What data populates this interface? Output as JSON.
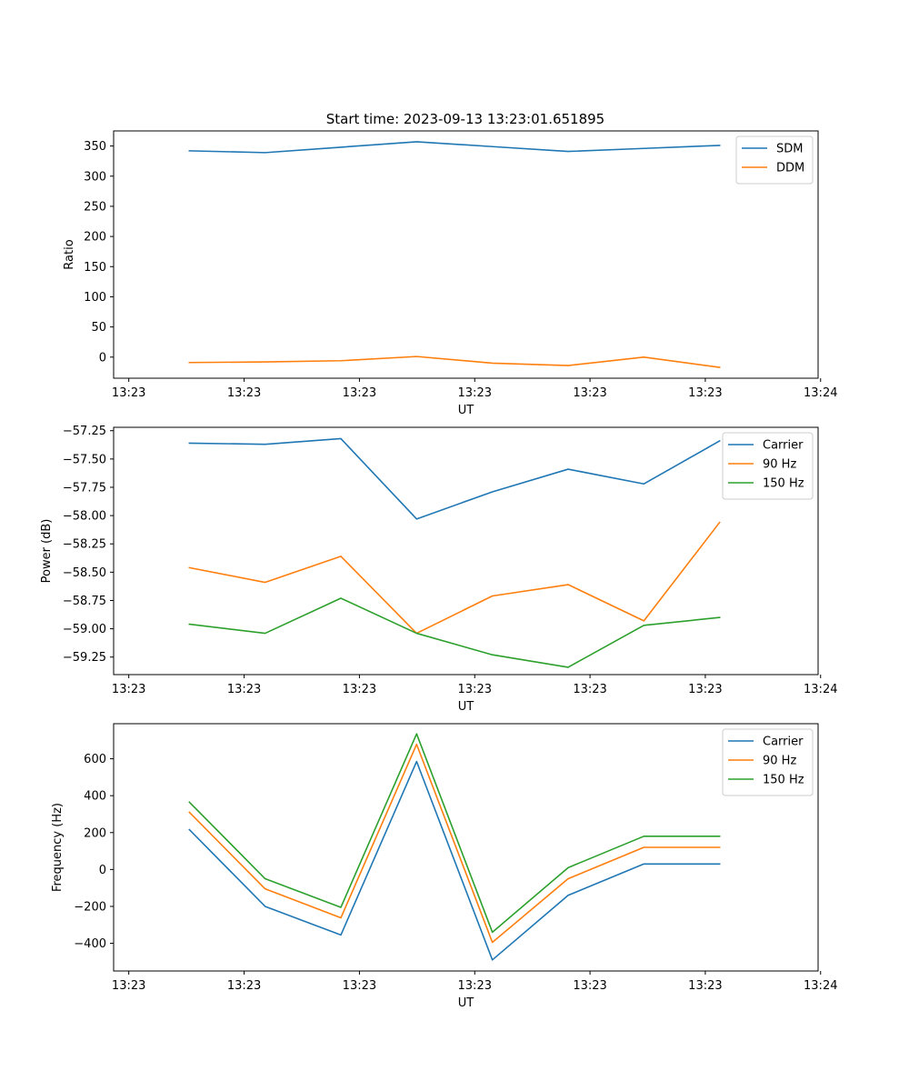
{
  "figure": {
    "title": "Start time: 2023-09-13 13:23:01.651895"
  },
  "colors": {
    "blue": "#1f77b4",
    "orange": "#ff7f0e",
    "green": "#2ca02c"
  },
  "chart_data": [
    {
      "type": "line",
      "title": "Start time: 2023-09-13 13:23:01.651895",
      "xlabel": "UT",
      "ylabel": "Ratio",
      "xtick_labels": [
        "13:23",
        "13:23",
        "13:23",
        "13:23",
        "13:23",
        "13:23",
        "13:24"
      ],
      "x": [
        1,
        2,
        3,
        4,
        5,
        6,
        7,
        8
      ],
      "xlim": [
        0,
        9.3
      ],
      "ylim": [
        -35,
        375
      ],
      "yticks": [
        0,
        50,
        100,
        150,
        200,
        250,
        300,
        350
      ],
      "ytick_labels": [
        "0",
        "50",
        "100",
        "150",
        "200",
        "250",
        "300",
        "350"
      ],
      "legend": "top-right",
      "series": [
        {
          "name": "SDM",
          "color": "#1f77b4",
          "values": [
            342,
            339,
            348,
            357,
            349,
            341,
            346,
            351
          ]
        },
        {
          "name": "DDM",
          "color": "#ff7f0e",
          "values": [
            -9,
            -8,
            -6,
            1,
            -10,
            -14,
            0,
            -17
          ]
        }
      ]
    },
    {
      "type": "line",
      "title": "",
      "xlabel": "UT",
      "ylabel": "Power (dB)",
      "xtick_labels": [
        "13:23",
        "13:23",
        "13:23",
        "13:23",
        "13:23",
        "13:23",
        "13:24"
      ],
      "x": [
        1,
        2,
        3,
        4,
        5,
        6,
        7,
        8
      ],
      "xlim": [
        0,
        9.3
      ],
      "ylim": [
        -59.405,
        -57.22
      ],
      "yticks": [
        -59.25,
        -59.0,
        -58.75,
        -58.5,
        -58.25,
        -58.0,
        -57.75,
        -57.5,
        -57.25
      ],
      "ytick_labels": [
        "−59.25",
        "−59.00",
        "−58.75",
        "−58.50",
        "−58.25",
        "−58.00",
        "−57.75",
        "−57.50",
        "−57.25"
      ],
      "legend": "top-right",
      "series": [
        {
          "name": "Carrier",
          "color": "#1f77b4",
          "values": [
            -57.36,
            -57.37,
            -57.32,
            -58.03,
            -57.79,
            -57.59,
            -57.72,
            -57.34
          ]
        },
        {
          "name": "90 Hz",
          "color": "#ff7f0e",
          "values": [
            -58.46,
            -58.59,
            -58.36,
            -59.04,
            -58.71,
            -58.61,
            -58.93,
            -58.06
          ]
        },
        {
          "name": "150 Hz",
          "color": "#2ca02c",
          "values": [
            -58.96,
            -59.04,
            -58.73,
            -59.04,
            -59.23,
            -59.34,
            -58.97,
            -58.9
          ]
        }
      ]
    },
    {
      "type": "line",
      "title": "",
      "xlabel": "UT",
      "ylabel": "Frequency (Hz)",
      "xtick_labels": [
        "13:23",
        "13:23",
        "13:23",
        "13:23",
        "13:23",
        "13:23",
        "13:24"
      ],
      "x": [
        1,
        2,
        3,
        4,
        5,
        6,
        7,
        8
      ],
      "xlim": [
        0,
        9.3
      ],
      "ylim": [
        -550,
        790
      ],
      "yticks": [
        -400,
        -200,
        0,
        200,
        400,
        600
      ],
      "ytick_labels": [
        "−400",
        "−200",
        "0",
        "200",
        "400",
        "600"
      ],
      "legend": "top-right",
      "series": [
        {
          "name": "Carrier",
          "color": "#1f77b4",
          "values": [
            216,
            -200,
            -355,
            585,
            -490,
            -140,
            30,
            30
          ]
        },
        {
          "name": "90 Hz",
          "color": "#ff7f0e",
          "values": [
            310,
            -105,
            -262,
            678,
            -395,
            -50,
            120,
            120
          ]
        },
        {
          "name": "150 Hz",
          "color": "#2ca02c",
          "values": [
            365,
            -50,
            -205,
            735,
            -340,
            10,
            180,
            180
          ]
        }
      ]
    }
  ]
}
